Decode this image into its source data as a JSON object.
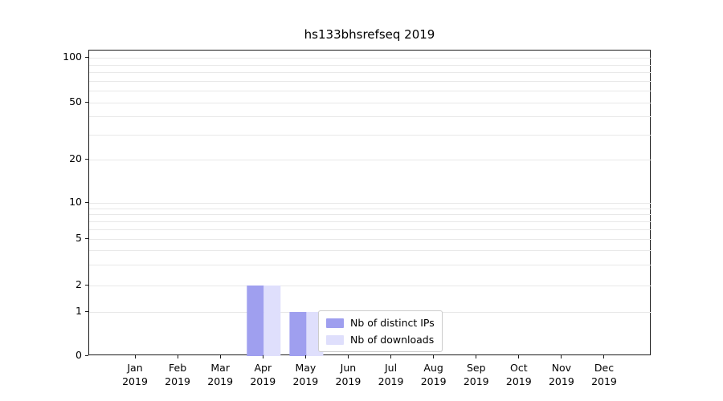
{
  "title": "hs133bhsrefseq 2019",
  "chart_data": {
    "type": "bar",
    "title": "hs133bhsrefseq 2019",
    "xlabel": "",
    "ylabel": "",
    "scale": "symlog",
    "categories": [
      "Jan 2019",
      "Feb 2019",
      "Mar 2019",
      "Apr 2019",
      "May 2019",
      "Jun 2019",
      "Jul 2019",
      "Aug 2019",
      "Sep 2019",
      "Oct 2019",
      "Nov 2019",
      "Dec 2019"
    ],
    "series": [
      {
        "name": "Nb of distinct IPs",
        "color": "#9f9fef",
        "values": [
          0,
          0,
          0,
          2,
          1,
          0,
          0,
          0,
          0,
          0,
          0,
          0
        ]
      },
      {
        "name": "Nb of downloads",
        "color": "#dfdffc",
        "values": [
          0,
          0,
          0,
          2,
          1,
          0,
          0,
          0,
          0,
          0,
          0,
          0
        ]
      }
    ],
    "y_ticks": [
      0,
      1,
      2,
      5,
      10,
      20,
      50,
      100
    ],
    "minor_gridlines": [
      3,
      4,
      6,
      7,
      8,
      9,
      30,
      40,
      60,
      70,
      80,
      90
    ],
    "ylim": [
      0,
      130
    ],
    "grid_on": true,
    "grid_color": "#e8e8e8",
    "axis_color": "#1a1a1a",
    "legend_position": "lower-center"
  }
}
